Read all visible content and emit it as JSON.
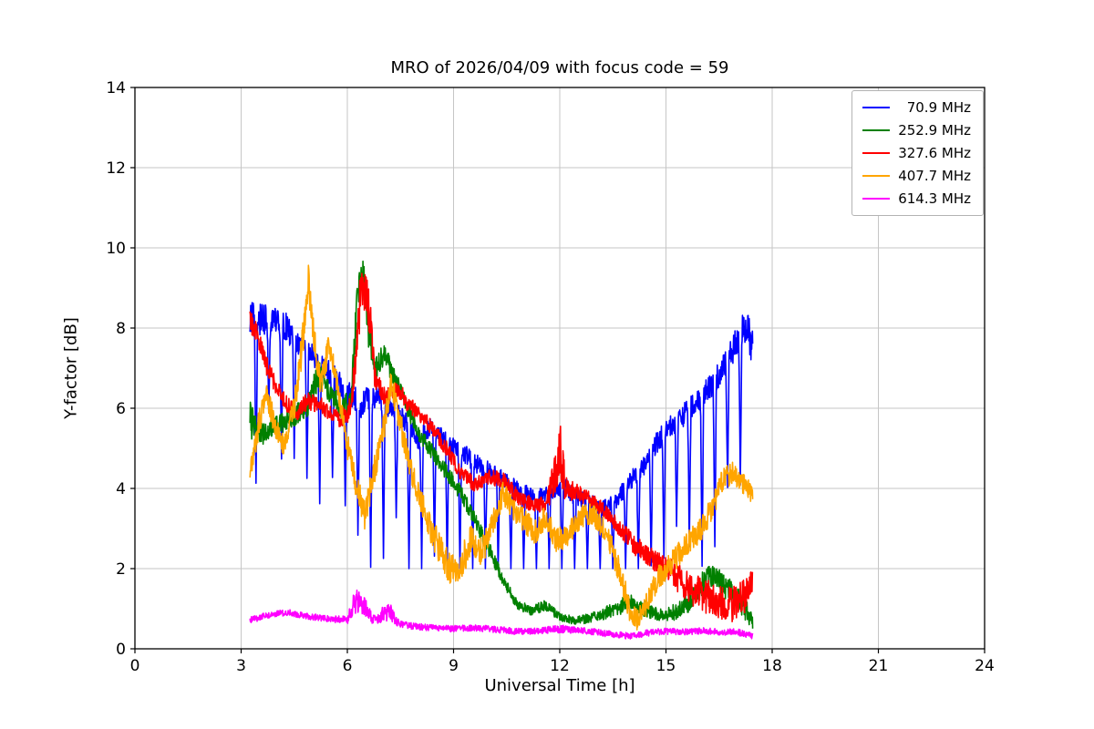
{
  "page": {
    "background": "#ffffff"
  },
  "chart_data": {
    "type": "line",
    "title": "MRO of 2026/04/09 with focus code = 59",
    "xlabel": "Universal Time [h]",
    "ylabel": "Y-factor [dB]",
    "xlim": [
      0,
      24
    ],
    "ylim": [
      0,
      14
    ],
    "x_ticks": [
      0,
      3,
      6,
      9,
      12,
      15,
      18,
      21,
      24
    ],
    "y_ticks": [
      0,
      2,
      4,
      6,
      8,
      10,
      12,
      14
    ],
    "grid": true,
    "grid_color": "#c6c6c6",
    "axis_color": "#000000",
    "legend_position": "upper right",
    "sample_step_h": 0.01,
    "series": [
      {
        "name": "  70.9 MHz",
        "color": "#0000ff",
        "spikes": {
          "start": 3.42,
          "end": 17.35,
          "interval": 0.36,
          "width": 0.045,
          "depth_min": 2.2,
          "depth_max": 4.3,
          "floor": 2.0
        },
        "anchors": [
          [
            3.25,
            8.4,
            0.5
          ],
          [
            3.5,
            8.2,
            0.4
          ],
          [
            4.0,
            8.2,
            0.35
          ],
          [
            4.3,
            8.0,
            0.35
          ],
          [
            4.6,
            7.6,
            0.3
          ],
          [
            5.0,
            7.3,
            0.3
          ],
          [
            5.4,
            7.0,
            0.3
          ],
          [
            5.8,
            6.6,
            0.3
          ],
          [
            6.1,
            6.3,
            0.3
          ],
          [
            6.4,
            6.1,
            0.35
          ],
          [
            6.7,
            6.3,
            0.3
          ],
          [
            7.0,
            6.2,
            0.3
          ],
          [
            7.3,
            5.9,
            0.3
          ],
          [
            7.6,
            5.7,
            0.25
          ],
          [
            8.0,
            5.2,
            0.25
          ],
          [
            8.4,
            5.5,
            0.3
          ],
          [
            8.6,
            5.3,
            0.25
          ],
          [
            9.0,
            5.0,
            0.25
          ],
          [
            9.4,
            4.8,
            0.25
          ],
          [
            9.8,
            4.5,
            0.25
          ],
          [
            10.2,
            4.4,
            0.2
          ],
          [
            10.6,
            4.1,
            0.2
          ],
          [
            11.0,
            3.9,
            0.2
          ],
          [
            11.4,
            3.8,
            0.2
          ],
          [
            11.8,
            3.9,
            0.2
          ],
          [
            12.1,
            4.1,
            0.25
          ],
          [
            12.4,
            3.8,
            0.2
          ],
          [
            12.8,
            3.7,
            0.2
          ],
          [
            13.2,
            3.5,
            0.2
          ],
          [
            13.6,
            3.7,
            0.2
          ],
          [
            14.0,
            4.2,
            0.25
          ],
          [
            14.4,
            4.6,
            0.25
          ],
          [
            14.8,
            5.2,
            0.3
          ],
          [
            15.2,
            5.6,
            0.3
          ],
          [
            15.6,
            5.9,
            0.3
          ],
          [
            16.0,
            6.3,
            0.3
          ],
          [
            16.4,
            6.7,
            0.3
          ],
          [
            16.8,
            7.3,
            0.35
          ],
          [
            17.1,
            7.9,
            0.4
          ],
          [
            17.3,
            8.1,
            0.4
          ],
          [
            17.45,
            7.4,
            0.5
          ]
        ]
      },
      {
        "name": "252.9 MHz",
        "color": "#008000",
        "anchors": [
          [
            3.25,
            5.7,
            0.5
          ],
          [
            3.5,
            5.3,
            0.3
          ],
          [
            3.8,
            5.5,
            0.25
          ],
          [
            4.1,
            5.6,
            0.25
          ],
          [
            4.5,
            5.8,
            0.25
          ],
          [
            4.9,
            6.1,
            0.3
          ],
          [
            5.2,
            6.9,
            0.35
          ],
          [
            5.5,
            6.4,
            0.3
          ],
          [
            5.8,
            6.0,
            0.25
          ],
          [
            6.1,
            6.2,
            0.3
          ],
          [
            6.3,
            8.8,
            0.6
          ],
          [
            6.45,
            9.3,
            0.4
          ],
          [
            6.6,
            8.0,
            0.5
          ],
          [
            6.8,
            7.0,
            0.3
          ],
          [
            7.05,
            7.4,
            0.3
          ],
          [
            7.3,
            6.8,
            0.25
          ],
          [
            7.6,
            6.2,
            0.25
          ],
          [
            8.0,
            5.4,
            0.2
          ],
          [
            8.4,
            4.9,
            0.2
          ],
          [
            8.8,
            4.4,
            0.2
          ],
          [
            9.2,
            3.9,
            0.2
          ],
          [
            9.6,
            3.2,
            0.2
          ],
          [
            10.0,
            2.5,
            0.2
          ],
          [
            10.4,
            1.7,
            0.15
          ],
          [
            10.8,
            1.1,
            0.12
          ],
          [
            11.2,
            0.95,
            0.12
          ],
          [
            11.6,
            1.1,
            0.15
          ],
          [
            12.0,
            0.8,
            0.12
          ],
          [
            12.4,
            0.7,
            0.1
          ],
          [
            12.8,
            0.75,
            0.12
          ],
          [
            13.2,
            0.85,
            0.15
          ],
          [
            13.6,
            1.0,
            0.2
          ],
          [
            14.0,
            1.2,
            0.2
          ],
          [
            14.4,
            1.0,
            0.2
          ],
          [
            14.8,
            0.85,
            0.15
          ],
          [
            15.2,
            0.9,
            0.2
          ],
          [
            15.6,
            1.1,
            0.25
          ],
          [
            16.0,
            1.6,
            0.3
          ],
          [
            16.3,
            1.85,
            0.3
          ],
          [
            16.6,
            1.6,
            0.3
          ],
          [
            17.0,
            1.3,
            0.3
          ],
          [
            17.3,
            0.9,
            0.25
          ],
          [
            17.45,
            0.6,
            0.2
          ]
        ]
      },
      {
        "name": "327.6 MHz",
        "color": "#ff0000",
        "anchors": [
          [
            3.25,
            8.2,
            0.3
          ],
          [
            3.45,
            7.9,
            0.25
          ],
          [
            3.7,
            7.1,
            0.25
          ],
          [
            4.0,
            6.5,
            0.2
          ],
          [
            4.3,
            6.1,
            0.2
          ],
          [
            4.6,
            5.9,
            0.2
          ],
          [
            4.9,
            6.2,
            0.25
          ],
          [
            5.2,
            6.1,
            0.2
          ],
          [
            5.5,
            5.9,
            0.2
          ],
          [
            5.8,
            5.7,
            0.2
          ],
          [
            6.1,
            6.0,
            0.3
          ],
          [
            6.35,
            8.6,
            0.7
          ],
          [
            6.5,
            9.0,
            0.5
          ],
          [
            6.65,
            8.2,
            0.6
          ],
          [
            6.8,
            6.6,
            0.3
          ],
          [
            7.1,
            6.3,
            0.25
          ],
          [
            7.4,
            6.5,
            0.25
          ],
          [
            7.7,
            6.1,
            0.2
          ],
          [
            8.0,
            5.9,
            0.2
          ],
          [
            8.4,
            5.5,
            0.2
          ],
          [
            8.8,
            5.0,
            0.2
          ],
          [
            9.2,
            4.4,
            0.2
          ],
          [
            9.6,
            4.1,
            0.2
          ],
          [
            10.0,
            4.3,
            0.2
          ],
          [
            10.4,
            4.2,
            0.2
          ],
          [
            10.8,
            3.8,
            0.2
          ],
          [
            11.2,
            3.6,
            0.2
          ],
          [
            11.6,
            3.6,
            0.2
          ],
          [
            11.95,
            4.6,
            0.6
          ],
          [
            12.05,
            4.9,
            0.9
          ],
          [
            12.15,
            4.0,
            0.3
          ],
          [
            12.5,
            3.9,
            0.2
          ],
          [
            12.9,
            3.7,
            0.2
          ],
          [
            13.3,
            3.4,
            0.2
          ],
          [
            13.7,
            3.0,
            0.2
          ],
          [
            14.1,
            2.6,
            0.25
          ],
          [
            14.5,
            2.3,
            0.25
          ],
          [
            14.9,
            2.1,
            0.3
          ],
          [
            15.3,
            1.8,
            0.35
          ],
          [
            15.7,
            1.5,
            0.4
          ],
          [
            16.1,
            1.3,
            0.45
          ],
          [
            16.5,
            1.2,
            0.45
          ],
          [
            16.9,
            1.1,
            0.45
          ],
          [
            17.2,
            1.3,
            0.45
          ],
          [
            17.45,
            1.7,
            0.3
          ]
        ]
      },
      {
        "name": "407.7 MHz",
        "color": "#ffa500",
        "anchors": [
          [
            3.25,
            4.4,
            0.3
          ],
          [
            3.5,
            5.6,
            0.35
          ],
          [
            3.7,
            6.4,
            0.3
          ],
          [
            3.95,
            5.6,
            0.3
          ],
          [
            4.2,
            5.1,
            0.3
          ],
          [
            4.5,
            6.0,
            0.3
          ],
          [
            4.75,
            7.8,
            0.5
          ],
          [
            4.9,
            9.2,
            0.4
          ],
          [
            5.05,
            7.8,
            0.4
          ],
          [
            5.25,
            6.6,
            0.35
          ],
          [
            5.5,
            7.6,
            0.35
          ],
          [
            5.7,
            6.6,
            0.3
          ],
          [
            6.0,
            5.1,
            0.35
          ],
          [
            6.25,
            4.1,
            0.35
          ],
          [
            6.5,
            3.3,
            0.35
          ],
          [
            6.75,
            4.4,
            0.35
          ],
          [
            7.0,
            5.4,
            0.35
          ],
          [
            7.25,
            6.6,
            0.45
          ],
          [
            7.5,
            5.6,
            0.35
          ],
          [
            7.75,
            4.6,
            0.3
          ],
          [
            8.0,
            3.9,
            0.3
          ],
          [
            8.3,
            3.1,
            0.35
          ],
          [
            8.6,
            2.5,
            0.4
          ],
          [
            8.9,
            2.0,
            0.4
          ],
          [
            9.2,
            2.1,
            0.4
          ],
          [
            9.5,
            2.7,
            0.4
          ],
          [
            9.8,
            2.4,
            0.35
          ],
          [
            10.1,
            3.1,
            0.35
          ],
          [
            10.4,
            3.9,
            0.3
          ],
          [
            10.7,
            3.5,
            0.3
          ],
          [
            11.0,
            3.2,
            0.3
          ],
          [
            11.3,
            2.9,
            0.3
          ],
          [
            11.6,
            3.3,
            0.3
          ],
          [
            11.9,
            2.7,
            0.3
          ],
          [
            12.2,
            2.8,
            0.3
          ],
          [
            12.5,
            3.2,
            0.3
          ],
          [
            12.8,
            3.4,
            0.3
          ],
          [
            13.1,
            3.2,
            0.3
          ],
          [
            13.4,
            2.7,
            0.3
          ],
          [
            13.7,
            1.9,
            0.35
          ],
          [
            14.0,
            0.9,
            0.3
          ],
          [
            14.2,
            0.7,
            0.25
          ],
          [
            14.5,
            1.2,
            0.3
          ],
          [
            14.8,
            1.8,
            0.3
          ],
          [
            15.1,
            2.1,
            0.3
          ],
          [
            15.4,
            2.4,
            0.3
          ],
          [
            15.7,
            2.7,
            0.3
          ],
          [
            16.0,
            3.0,
            0.3
          ],
          [
            16.3,
            3.5,
            0.3
          ],
          [
            16.6,
            4.2,
            0.3
          ],
          [
            16.85,
            4.4,
            0.3
          ],
          [
            17.1,
            4.2,
            0.25
          ],
          [
            17.3,
            4.0,
            0.25
          ],
          [
            17.45,
            3.8,
            0.25
          ]
        ]
      },
      {
        "name": "614.3 MHz",
        "color": "#ff00ff",
        "anchors": [
          [
            3.25,
            0.72,
            0.08
          ],
          [
            3.6,
            0.8,
            0.08
          ],
          [
            4.0,
            0.88,
            0.08
          ],
          [
            4.4,
            0.9,
            0.08
          ],
          [
            4.8,
            0.82,
            0.08
          ],
          [
            5.2,
            0.78,
            0.08
          ],
          [
            5.6,
            0.74,
            0.08
          ],
          [
            6.0,
            0.72,
            0.1
          ],
          [
            6.2,
            1.15,
            0.3
          ],
          [
            6.4,
            1.2,
            0.3
          ],
          [
            6.6,
            0.85,
            0.2
          ],
          [
            6.8,
            0.7,
            0.1
          ],
          [
            7.0,
            0.85,
            0.2
          ],
          [
            7.2,
            0.95,
            0.25
          ],
          [
            7.4,
            0.65,
            0.1
          ],
          [
            7.7,
            0.58,
            0.08
          ],
          [
            8.0,
            0.55,
            0.08
          ],
          [
            8.5,
            0.52,
            0.08
          ],
          [
            9.0,
            0.5,
            0.08
          ],
          [
            9.5,
            0.52,
            0.08
          ],
          [
            10.0,
            0.5,
            0.08
          ],
          [
            10.5,
            0.46,
            0.08
          ],
          [
            11.0,
            0.42,
            0.08
          ],
          [
            11.5,
            0.46,
            0.08
          ],
          [
            12.0,
            0.5,
            0.1
          ],
          [
            12.5,
            0.46,
            0.08
          ],
          [
            13.0,
            0.42,
            0.08
          ],
          [
            13.5,
            0.36,
            0.08
          ],
          [
            14.0,
            0.32,
            0.08
          ],
          [
            14.5,
            0.4,
            0.08
          ],
          [
            15.0,
            0.44,
            0.08
          ],
          [
            15.5,
            0.42,
            0.08
          ],
          [
            16.0,
            0.45,
            0.08
          ],
          [
            16.5,
            0.42,
            0.08
          ],
          [
            17.0,
            0.42,
            0.08
          ],
          [
            17.45,
            0.32,
            0.08
          ]
        ]
      }
    ]
  }
}
